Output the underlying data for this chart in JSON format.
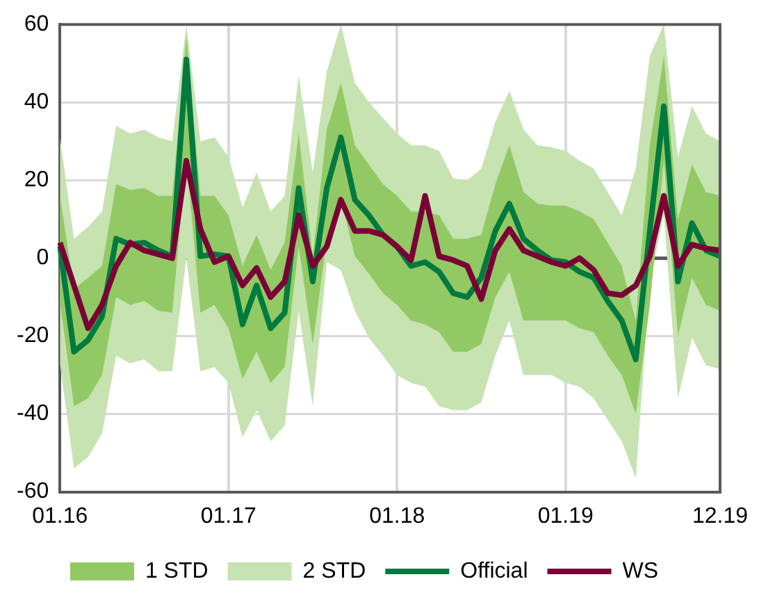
{
  "chart_data": {
    "type": "line",
    "categories": [
      "01.16",
      null,
      null,
      null,
      null,
      null,
      null,
      null,
      null,
      null,
      null,
      null,
      "01.17",
      null,
      null,
      null,
      null,
      null,
      null,
      null,
      null,
      null,
      null,
      null,
      "01.18",
      null,
      null,
      null,
      null,
      null,
      null,
      null,
      null,
      null,
      null,
      null,
      "01.19",
      null,
      null,
      null,
      null,
      null,
      null,
      null,
      null,
      null,
      null,
      "12.19"
    ],
    "series": [
      {
        "name": "1 STD",
        "type": "area",
        "color": "#92c965",
        "values": [
          null,
          null,
          null,
          null,
          null,
          null,
          null,
          null,
          null,
          null,
          null,
          null,
          null,
          null,
          null,
          null,
          null,
          null,
          null,
          null,
          null,
          null,
          null,
          null,
          null,
          null,
          null,
          null,
          null,
          null,
          null,
          null,
          null,
          null,
          null,
          null,
          null,
          null,
          null,
          null,
          null,
          null,
          null,
          null,
          null,
          null,
          null,
          null
        ],
        "lower": [
          -11,
          -38,
          -36,
          -30,
          -10,
          -12,
          -11,
          -13.5,
          -14,
          26,
          -14,
          -12,
          -18,
          -31,
          -24,
          -32,
          -28,
          3,
          -22,
          5,
          15,
          0.5,
          -4,
          -9,
          -12,
          -16,
          -17,
          -19,
          -24,
          -24,
          -22,
          -10,
          -3.5,
          -16,
          -16,
          -16,
          -16,
          -18,
          -19,
          -25,
          -30,
          -40,
          -12,
          25,
          -20,
          -5,
          -12,
          -13.5
        ],
        "upper": [
          16,
          -8,
          -5,
          -2,
          19,
          17.5,
          18,
          16,
          16,
          57,
          16,
          16,
          11,
          -2,
          6,
          -3,
          4,
          32,
          0.5,
          33,
          45,
          29,
          24,
          19,
          16,
          12,
          12,
          11,
          5,
          5,
          6,
          19,
          29,
          17,
          14,
          13.5,
          13.5,
          12,
          10,
          4,
          -2,
          -16,
          29,
          52,
          10,
          24,
          17,
          16
        ]
      },
      {
        "name": "2 STD",
        "type": "area",
        "color": "#c6e3b1",
        "values": [
          null,
          null,
          null,
          null,
          null,
          null,
          null,
          null,
          null,
          null,
          null,
          null,
          null,
          null,
          null,
          null,
          null,
          null,
          null,
          null,
          null,
          null,
          null,
          null,
          null,
          null,
          null,
          null,
          null,
          null,
          null,
          null,
          null,
          null,
          null,
          null,
          null,
          null,
          null,
          null,
          null,
          null,
          null,
          null,
          null,
          null,
          null,
          null
        ],
        "lower": [
          -27,
          -54,
          -51,
          -45,
          -25,
          -27,
          -26,
          -29,
          -29,
          0,
          -29,
          -28,
          -32,
          -46,
          -39,
          -47,
          -43,
          -13.5,
          -38,
          -1,
          -3,
          -13.5,
          -20.5,
          -25,
          -30,
          -32,
          -33,
          -38,
          -39,
          -39,
          -37,
          -25,
          -16,
          -30,
          -30,
          -30,
          -32,
          -33,
          -36,
          -41.5,
          -47,
          -56.5,
          -6,
          11,
          -36,
          -20.5,
          -27.5,
          -28.5
        ],
        "upper": [
          31,
          5,
          8,
          12,
          34,
          32,
          33,
          31,
          30,
          60,
          30,
          31,
          26,
          13,
          22,
          12,
          16,
          47,
          22,
          48,
          60,
          45,
          40,
          36,
          32,
          29,
          29,
          27.5,
          20.5,
          20,
          23,
          35,
          43,
          33,
          29,
          28.5,
          27.5,
          25,
          23,
          17,
          11,
          23,
          52,
          60,
          26,
          39,
          32,
          30
        ]
      },
      {
        "name": "Official",
        "type": "line",
        "color": "#007a3e",
        "values": [
          3,
          -24,
          -21,
          -15,
          5,
          3.5,
          4,
          2,
          0.5,
          51,
          0.5,
          1,
          0.5,
          -17,
          -7,
          -18,
          -14,
          18,
          -6,
          18,
          31,
          15,
          11,
          6,
          3,
          -2,
          -1,
          -3.5,
          -9,
          -10,
          -5,
          7,
          14,
          5,
          2,
          -0.5,
          -1,
          -3.5,
          -5,
          -11,
          -16,
          -26,
          7,
          39,
          -6,
          9,
          2,
          0.5
        ]
      },
      {
        "name": "WS",
        "type": "line",
        "color": "#7a0035",
        "values": [
          4,
          -7,
          -18,
          -12,
          -2,
          4,
          2,
          1,
          0,
          25,
          7.5,
          -1,
          0.5,
          -7,
          -2.5,
          -10,
          -6,
          11,
          -2,
          3,
          15,
          7,
          7,
          6,
          3,
          -0.5,
          16,
          0.5,
          -0.5,
          -2,
          -10.5,
          2,
          7.5,
          2,
          0.5,
          -1,
          -2,
          0,
          -3,
          -9,
          -9.5,
          -7,
          0.5,
          16,
          -2,
          3.5,
          2.5,
          2
        ]
      }
    ],
    "ylim": [
      -60,
      60
    ],
    "yticks": [
      -60,
      -40,
      -20,
      0,
      20,
      40,
      60
    ],
    "grid": true,
    "legend": "bottom",
    "marker": "none",
    "line_style": "solid"
  }
}
